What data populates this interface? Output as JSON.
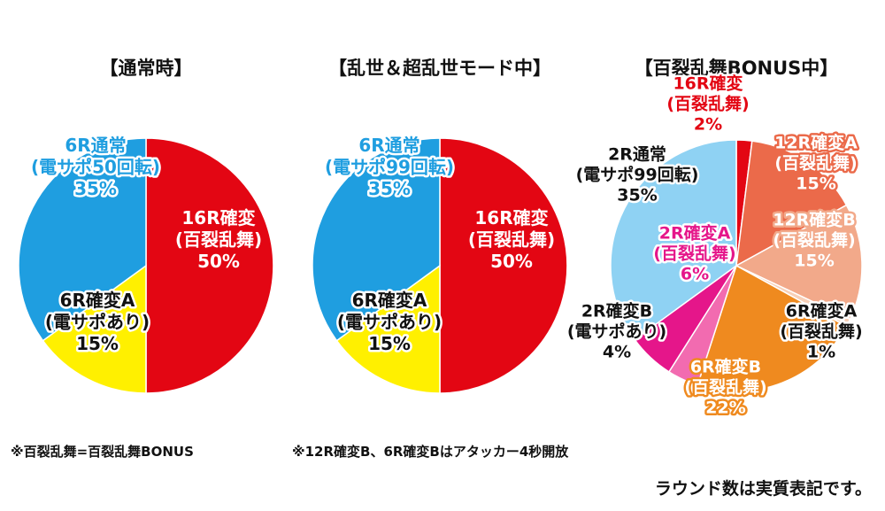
{
  "chart_data": [
    {
      "type": "pie",
      "title": "【通常時】",
      "slices": [
        {
          "label": [
            "16R確変",
            "(百裂乱舞)"
          ],
          "value": 50,
          "value_label": "50%",
          "color": "#e30613"
        },
        {
          "label": [
            "6R確変A",
            "(電サポあり)"
          ],
          "value": 15,
          "value_label": "15%",
          "color": "#fff000"
        },
        {
          "label": [
            "6R通常",
            "(電サポ50回転)"
          ],
          "value": 35,
          "value_label": "35%",
          "color": "#1f9ee0"
        }
      ]
    },
    {
      "type": "pie",
      "title": "【乱世＆超乱世モード中】",
      "slices": [
        {
          "label": [
            "16R確変",
            "(百裂乱舞)"
          ],
          "value": 50,
          "value_label": "50%",
          "color": "#e30613"
        },
        {
          "label": [
            "6R確変A",
            "(電サポあり)"
          ],
          "value": 15,
          "value_label": "15%",
          "color": "#fff000"
        },
        {
          "label": [
            "6R通常",
            "(電サポ99回転)"
          ],
          "value": 35,
          "value_label": "35%",
          "color": "#1f9ee0"
        }
      ]
    },
    {
      "type": "pie",
      "title": "【百裂乱舞BONUS中】",
      "slices": [
        {
          "label": [
            "16R確変",
            "(百裂乱舞)"
          ],
          "value": 2,
          "value_label": "2%",
          "color": "#e30613"
        },
        {
          "label": [
            "12R確変A",
            "(百裂乱舞)"
          ],
          "value": 15,
          "value_label": "15%",
          "color": "#eb6a4a"
        },
        {
          "label": [
            "12R確変B",
            "(百裂乱舞)"
          ],
          "value": 15,
          "value_label": "15%",
          "color": "#f2a98a"
        },
        {
          "label": [
            "6R確変A",
            "(百裂乱舞)"
          ],
          "value": 1,
          "value_label": "1%",
          "color": "#f8d0b8"
        },
        {
          "label": [
            "6R確変B",
            "(百裂乱舞)"
          ],
          "value": 22,
          "value_label": "22%",
          "color": "#ef8a1f"
        },
        {
          "label": [
            "2R確変B",
            "(電サポあり)"
          ],
          "value": 4,
          "value_label": "4%",
          "color": "#f26bb0"
        },
        {
          "label": [
            "2R確変A",
            "(百裂乱舞)"
          ],
          "value": 6,
          "value_label": "6%",
          "color": "#e5168a"
        },
        {
          "label": [
            "2R通常",
            "(電サポ99回転)"
          ],
          "value": 35,
          "value_label": "35%",
          "color": "#8fd2f3"
        }
      ]
    }
  ],
  "notes": {
    "note1": "※百裂乱舞=百裂乱舞BONUS",
    "note2": "※12R確変B、6R確変Bはアタッカー4秒開放",
    "footer": "ラウンド数は実質表記です。"
  }
}
